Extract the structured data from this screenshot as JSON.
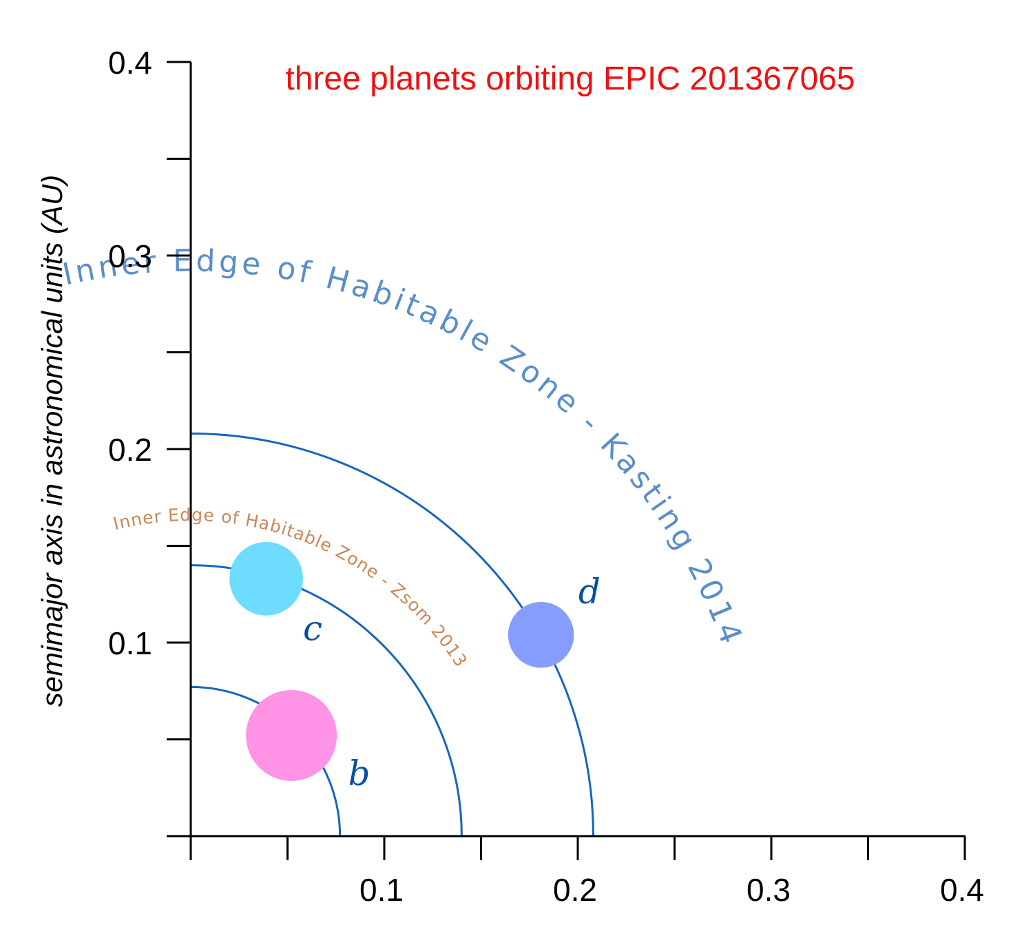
{
  "chart_data": {
    "type": "scatter",
    "title": "three planets orbiting EPIC 201367065",
    "ylabel": "semimajor axis in astronomical units (AU)",
    "xlabel": "",
    "xlim": [
      0,
      0.4
    ],
    "ylim": [
      0,
      0.4
    ],
    "x_ticks": [
      0.1,
      0.2,
      0.3,
      0.4
    ],
    "y_ticks": [
      0.1,
      0.2,
      0.3,
      0.4
    ],
    "tick_step": 0.05,
    "grid": false,
    "orbits": [
      {
        "name": "b",
        "radius_au": 0.0771,
        "color": "#1565c0"
      },
      {
        "name": "hz-zsom",
        "radius_au": 0.14,
        "color": "#1565c0"
      },
      {
        "name": "hz-kasting",
        "radius_au": 0.208,
        "color": "#1565c0"
      }
    ],
    "planets": [
      {
        "name": "b",
        "x": 0.052,
        "y": 0.052,
        "radius_au": 0.0235,
        "color": "#ff94e6",
        "label_color": "#0a4fa3"
      },
      {
        "name": "c",
        "x": 0.039,
        "y": 0.133,
        "radius_au": 0.019,
        "color": "#6edcff",
        "label_color": "#0a4fa3"
      },
      {
        "name": "d",
        "x": 0.181,
        "y": 0.104,
        "radius_au": 0.017,
        "color": "#849dff",
        "label_color": "#0a4fa3"
      }
    ],
    "annotations": [
      {
        "id": "zsom",
        "text": "Inner Edge of Habitable Zone - Zsom 2013",
        "color": "#c8875a"
      },
      {
        "id": "kasting",
        "text": "Inner Edge of Habitable Zone - Kasting 2014",
        "color": "#5b8ec9"
      }
    ],
    "title_color": "#ee1111"
  }
}
